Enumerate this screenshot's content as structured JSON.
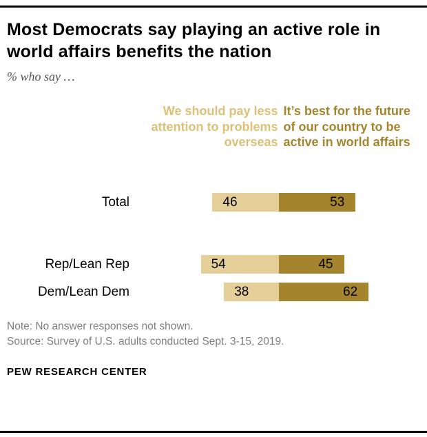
{
  "chart_data": {
    "type": "bar",
    "orientation": "horizontal-diverging",
    "title": "Most Democrats say playing an active role in world affairs benefits the nation",
    "subtitle": "% who say …",
    "categories": [
      "Total",
      "Rep/Lean Rep",
      "Dem/Lean Dem"
    ],
    "series": [
      {
        "name": "We should pay less attention to problems overseas",
        "values": [
          46,
          54,
          38
        ],
        "color": "#E4CF99"
      },
      {
        "name": "It’s best for the future of our country to be active in world affairs",
        "values": [
          53,
          45,
          62
        ],
        "color": "#A5842E"
      }
    ],
    "value_unit": "%",
    "legend_position": "top",
    "grid": false
  },
  "colors": {
    "left_bar": "#E4CF99",
    "right_bar": "#A5842E",
    "left_header_text": "#DBC077",
    "right_header_text": "#A5842E",
    "note_text": "#7e7e7e",
    "rule": "#000000"
  },
  "footer": {
    "note": "Note: No answer responses not shown.",
    "source": "Source: Survey of U.S. adults conducted Sept. 3-15, 2019.",
    "brand": "PEW RESEARCH CENTER"
  }
}
